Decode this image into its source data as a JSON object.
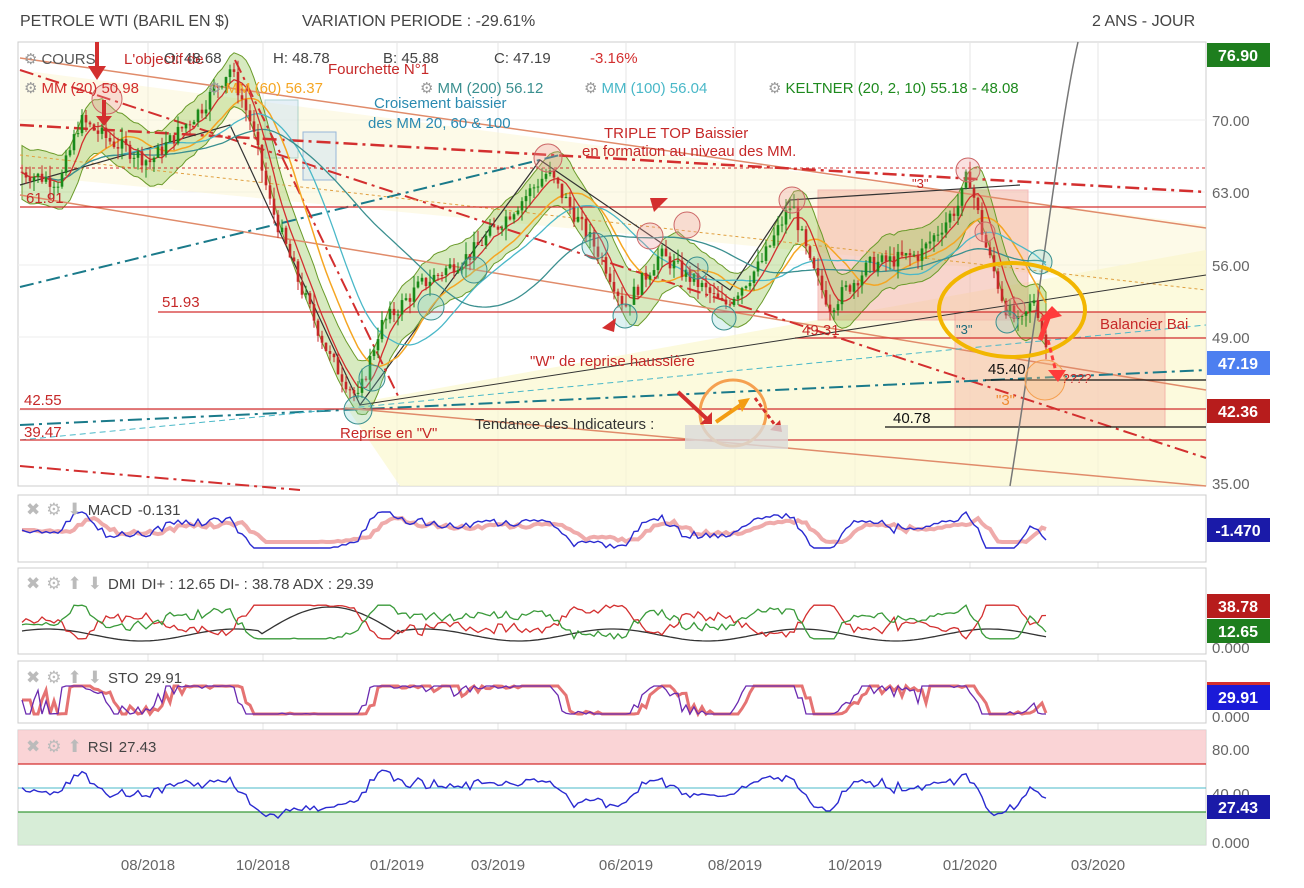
{
  "header": {
    "title": "PETROLE WTI (BARIL EN $)",
    "variation": "VARIATION PERIODE : -29.61%",
    "period": "2 ANS - JOUR"
  },
  "legend": {
    "cours": "COURS",
    "open": "O: 48.68",
    "high": "H: 48.78",
    "low": "B: 45.88",
    "close": "C: 47.19",
    "change": "-3.16%",
    "mm20": "MM (20) 50.98",
    "mm60": "MM (60) 56.37",
    "mm200": "MM (200) 56.12",
    "mm100": "MM (100) 56.04",
    "keltner": "KELTNER (20, 2, 10) 55.18 - 48.08"
  },
  "annotations": {
    "objectif": "L'objectif de",
    "fourchette": "Fourchette N°1",
    "croisement1": "Croisement baissier",
    "croisement2": "des MM 20, 60 & 100",
    "tripletop1": "TRIPLE TOP Baissier",
    "tripletop2": "en formation au niveau des MM.",
    "w_reprise": "\"W\" de reprise haussière",
    "v_reprise": "Reprise en \"V\"",
    "tendance": "Tendance des Indicateurs :",
    "balancier": "Balancier Bai",
    "three_a": "\"3\"",
    "three_b": "\"3\"",
    "three_c": "\"3\"",
    "question": "????"
  },
  "levels": {
    "l6191": "61.91",
    "l5193": "51.93",
    "l4931": "49.31",
    "l4540": "45.40",
    "l4255": "42.55",
    "l4078": "40.78",
    "l3947": "39.47"
  },
  "price_axis": {
    "ticks": [
      "70.00",
      "63.00",
      "56.00",
      "49.00",
      "35.00"
    ],
    "badge_high": "76.90",
    "badge_close": "47.19",
    "badge_low": "42.36"
  },
  "x_axis": {
    "ticks": [
      "08/2018",
      "10/2018",
      "01/2019",
      "03/2019",
      "06/2019",
      "08/2019",
      "10/2019",
      "01/2020",
      "03/2020"
    ]
  },
  "panels": {
    "macd": {
      "label": "MACD",
      "value": "-0.131",
      "badge": "-1.470"
    },
    "dmi": {
      "label": "DMI",
      "values": "DI+ : 12.65 DI- : 38.78 ADX : 29.39",
      "badge_top": "38.78",
      "badge_bottom": "12.65",
      "zero": "0.000"
    },
    "sto": {
      "label": "STO",
      "value": "29.91",
      "badge": "29.91",
      "zero": "0.000"
    },
    "rsi": {
      "label": "RSI",
      "value": "27.43",
      "badge": "27.43",
      "tick80": "80.00",
      "tick40": "40.00",
      "zero": "0.000"
    }
  },
  "colors": {
    "candle_up": "#1a8a1a",
    "candle_down": "#c62828",
    "mm20": "#d32f2f",
    "mm60": "#f5a623",
    "mm100": "#4ab8c8",
    "mm200": "#3a8f8f",
    "keltner_fill": "#8bc34a",
    "macd": "#2a2ad0",
    "signal": "#d32f2f",
    "rsi": "#2a2ad0",
    "badge_green": "#1e7e1e",
    "badge_red": "#b71c1c",
    "badge_blue": "#1a1aa8"
  },
  "chart_data": {
    "type": "line",
    "title": "PETROLE WTI (BARIL EN $)",
    "x": [
      "08/2018",
      "10/2018",
      "01/2019",
      "03/2019",
      "06/2019",
      "08/2019",
      "10/2019",
      "01/2020",
      "03/2020"
    ],
    "price_series": [
      {
        "date": "06/2018",
        "close": 66.0
      },
      {
        "date": "07/2018",
        "close": 69.0
      },
      {
        "date": "08/2018",
        "close": 68.0
      },
      {
        "date": "09/2018",
        "close": 71.0
      },
      {
        "date": "10/2018",
        "close": 74.0
      },
      {
        "date": "11/2018",
        "close": 57.0
      },
      {
        "date": "12/2018",
        "close": 45.0
      },
      {
        "date": "01/2019",
        "close": 52.0
      },
      {
        "date": "02/2019",
        "close": 56.5
      },
      {
        "date": "03/2019",
        "close": 59.0
      },
      {
        "date": "04/2019",
        "close": 64.0
      },
      {
        "date": "05/2019",
        "close": 59.0
      },
      {
        "date": "06/2019",
        "close": 52.0
      },
      {
        "date": "07/2019",
        "close": 57.0
      },
      {
        "date": "08/2019",
        "close": 55.0
      },
      {
        "date": "09/2019",
        "close": 57.0
      },
      {
        "date": "10/2019",
        "close": 54.0
      },
      {
        "date": "11/2019",
        "close": 57.5
      },
      {
        "date": "12/2019",
        "close": 61.0
      },
      {
        "date": "01/2020",
        "close": 63.0
      },
      {
        "date": "02/2020",
        "close": 50.0
      },
      {
        "date": "02/2020",
        "close": 47.19
      }
    ],
    "ylim": [
      35,
      76.9
    ],
    "rsi_last": 27.43,
    "sto_last": 29.91,
    "macd_last": -0.131,
    "dmi": {
      "di_plus": 12.65,
      "di_minus": 38.78,
      "adx": 29.39
    }
  }
}
